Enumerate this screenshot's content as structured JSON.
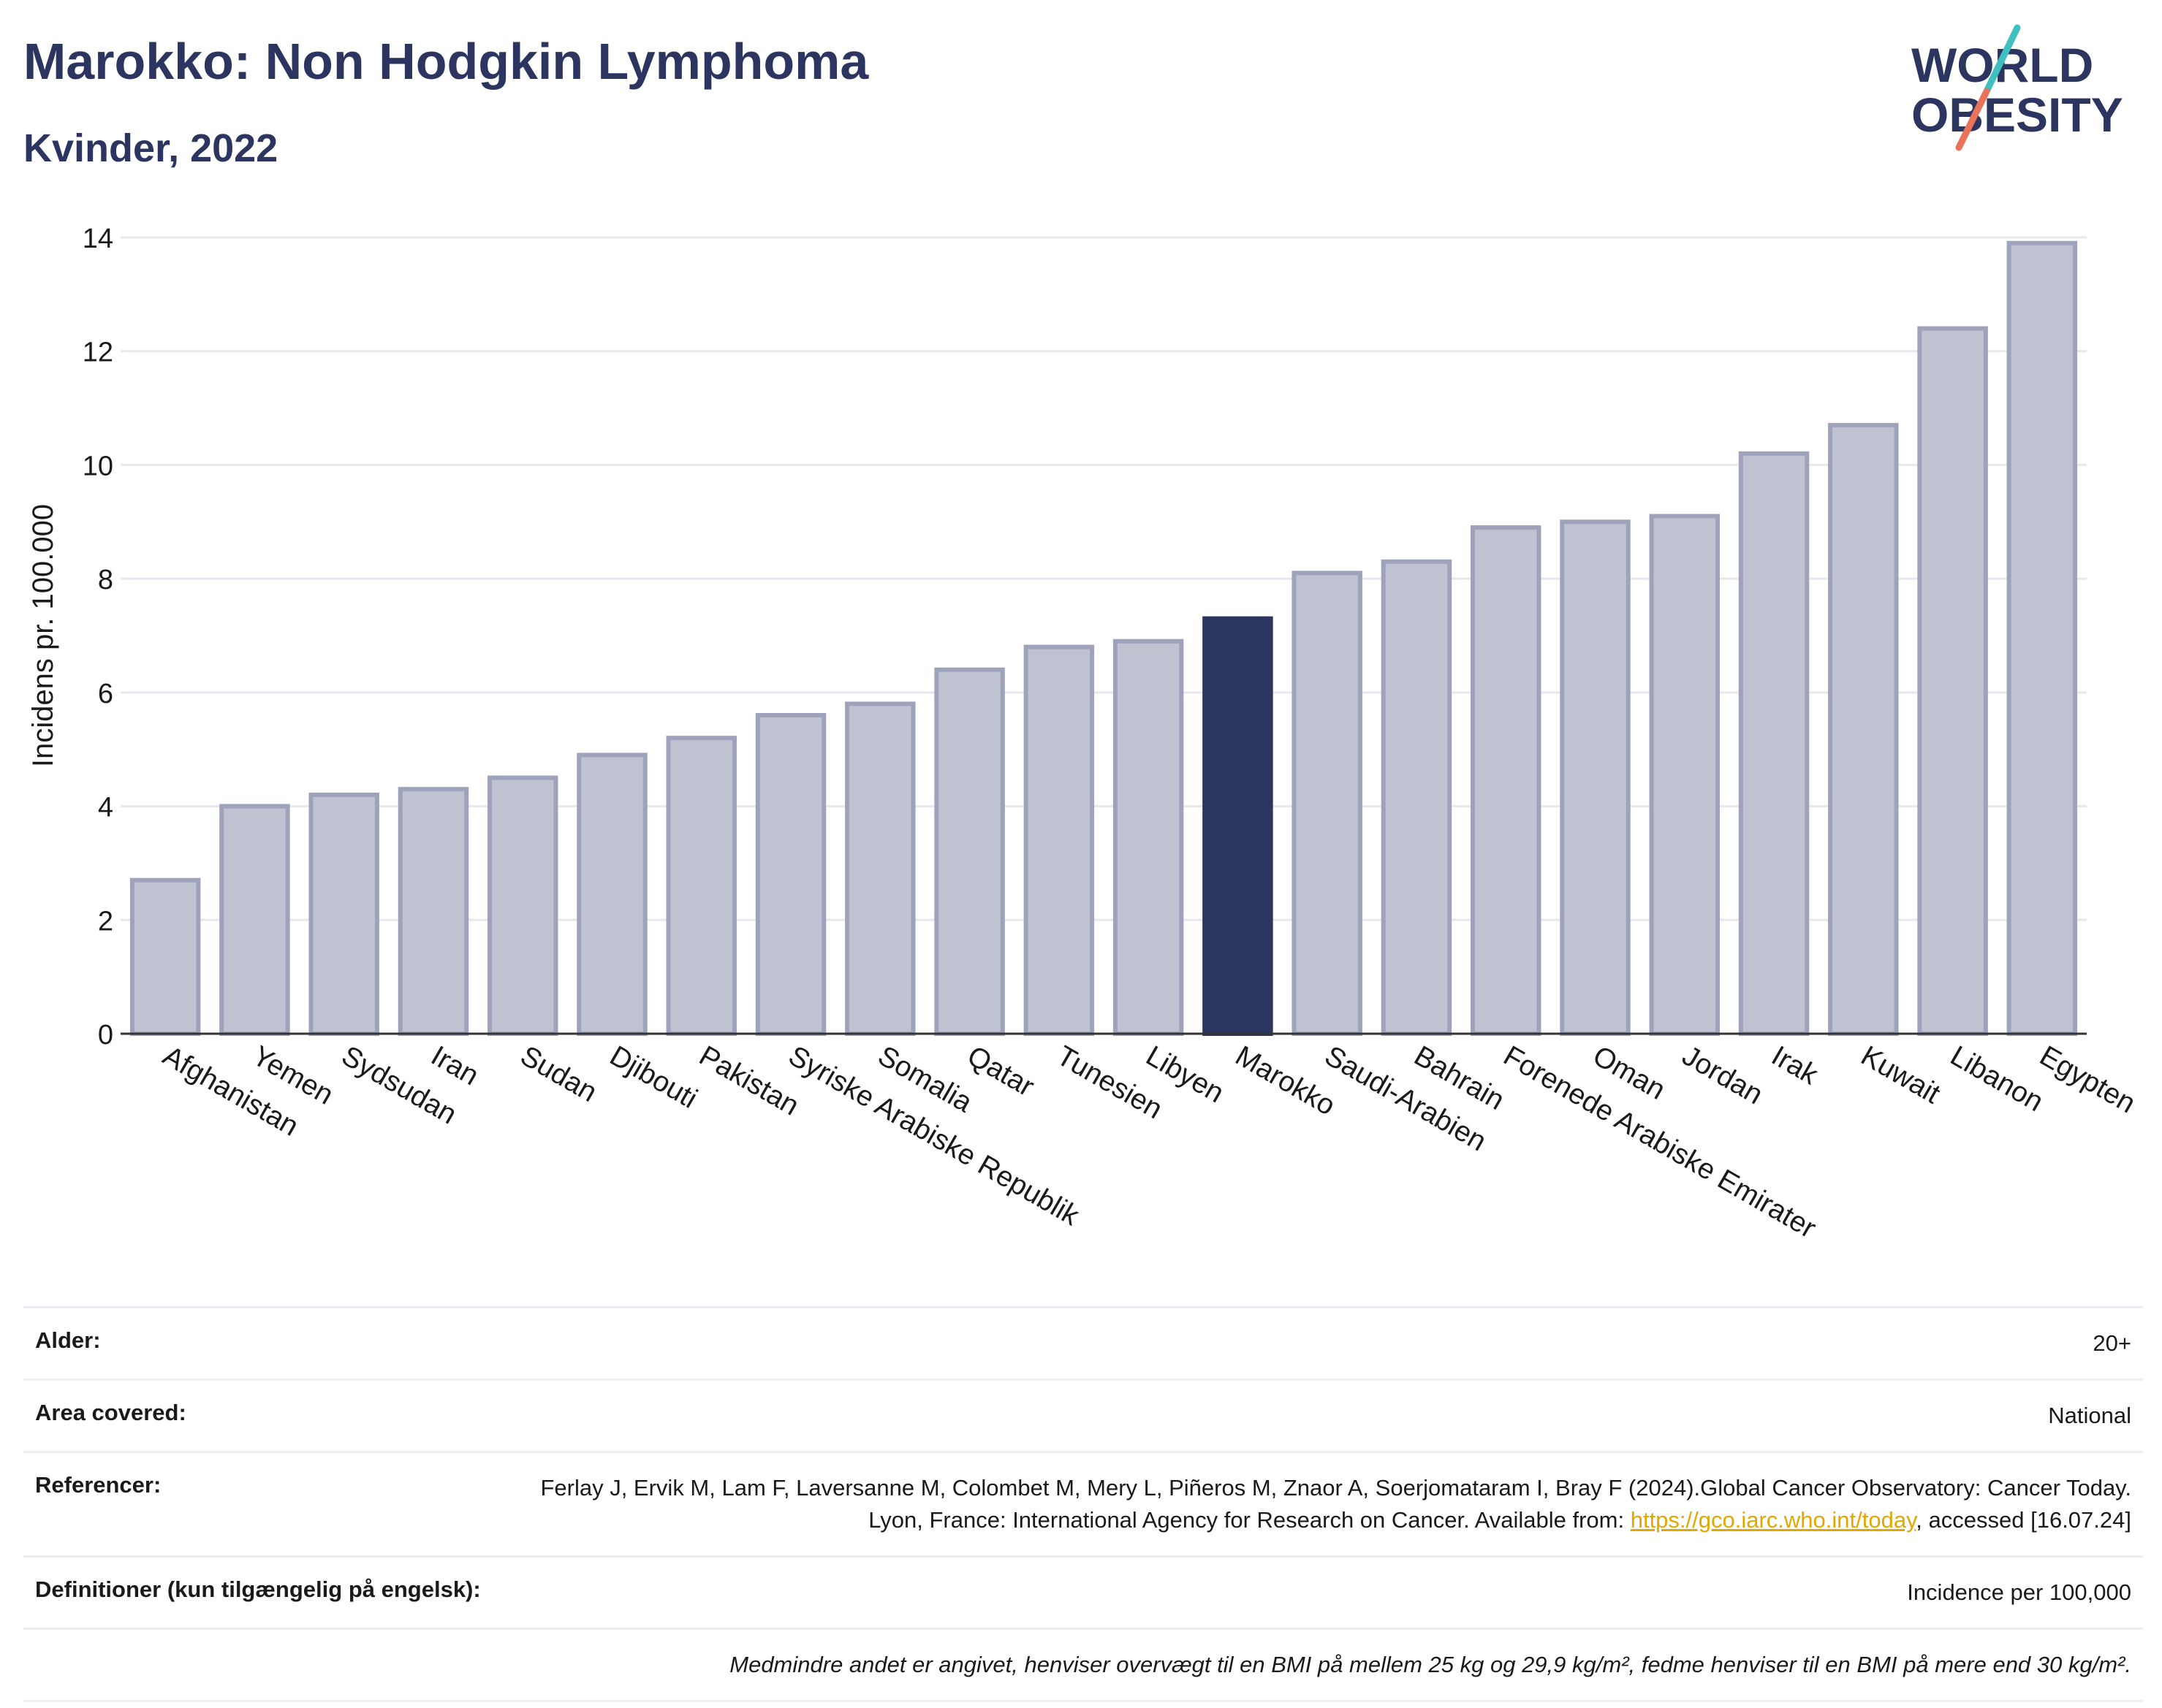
{
  "header": {
    "title": "Marokko: Non Hodgkin Lymphoma",
    "subtitle": "Kvinder, 2022"
  },
  "logo": {
    "line1": "WORLD",
    "line2": "OBESITY",
    "slash_colors": [
      "#3fbfbf",
      "#e8735a"
    ]
  },
  "colors": {
    "bar": "#bfc3d1",
    "bar_border": "#9ea3bb",
    "highlight": "#2b3560",
    "grid": "#e6e8ee",
    "text": "#1a1a1a"
  },
  "chart_data": {
    "type": "bar",
    "title": "",
    "xlabel": "",
    "ylabel": "Incidens pr. 100.000",
    "ylim": [
      0,
      14
    ],
    "yticks": [
      0,
      2,
      4,
      6,
      8,
      10,
      12,
      14
    ],
    "grid": true,
    "highlight": "Marokko",
    "categories": [
      "Afghanistan",
      "Yemen",
      "Sydsudan",
      "Iran",
      "Sudan",
      "Djibouti",
      "Pakistan",
      "Syriske Arabiske Republik",
      "Somalia",
      "Qatar",
      "Tunesien",
      "Libyen",
      "Marokko",
      "Saudi-Arabien",
      "Bahrain",
      "Forenede Arabiske Emirater",
      "Oman",
      "Jordan",
      "Irak",
      "Kuwait",
      "Libanon",
      "Egypten"
    ],
    "values": [
      2.7,
      4.0,
      4.2,
      4.3,
      4.5,
      4.9,
      5.2,
      5.6,
      5.8,
      6.4,
      6.8,
      6.9,
      7.3,
      8.1,
      8.3,
      8.9,
      9.0,
      9.1,
      10.2,
      10.7,
      12.4,
      13.9
    ]
  },
  "info": {
    "age_label": "Alder:",
    "age_value": "20+",
    "area_label": "Area covered:",
    "area_value": "National",
    "ref_label": "Referencer:",
    "ref_text": "Ferlay J, Ervik M, Lam F, Laversanne M, Colombet M, Mery L, Piñeros M, Znaor A, Soerjomataram I, Bray F (2024).Global Cancer Observatory: Cancer Today. Lyon, France: International Agency for Research on Cancer. Available from: ",
    "ref_link": "https://gco.iarc.who.int/today",
    "ref_tail": ", accessed [16.07.24]",
    "def_label": "Definitioner (kun tilgængelig på engelsk):",
    "def_value": "Incidence per 100,000",
    "note": "Medmindre andet er angivet, henviser overvægt til en BMI på mellem 25 kg og 29,9 kg/m², fedme henviser til en BMI på mere end 30 kg/m²."
  }
}
